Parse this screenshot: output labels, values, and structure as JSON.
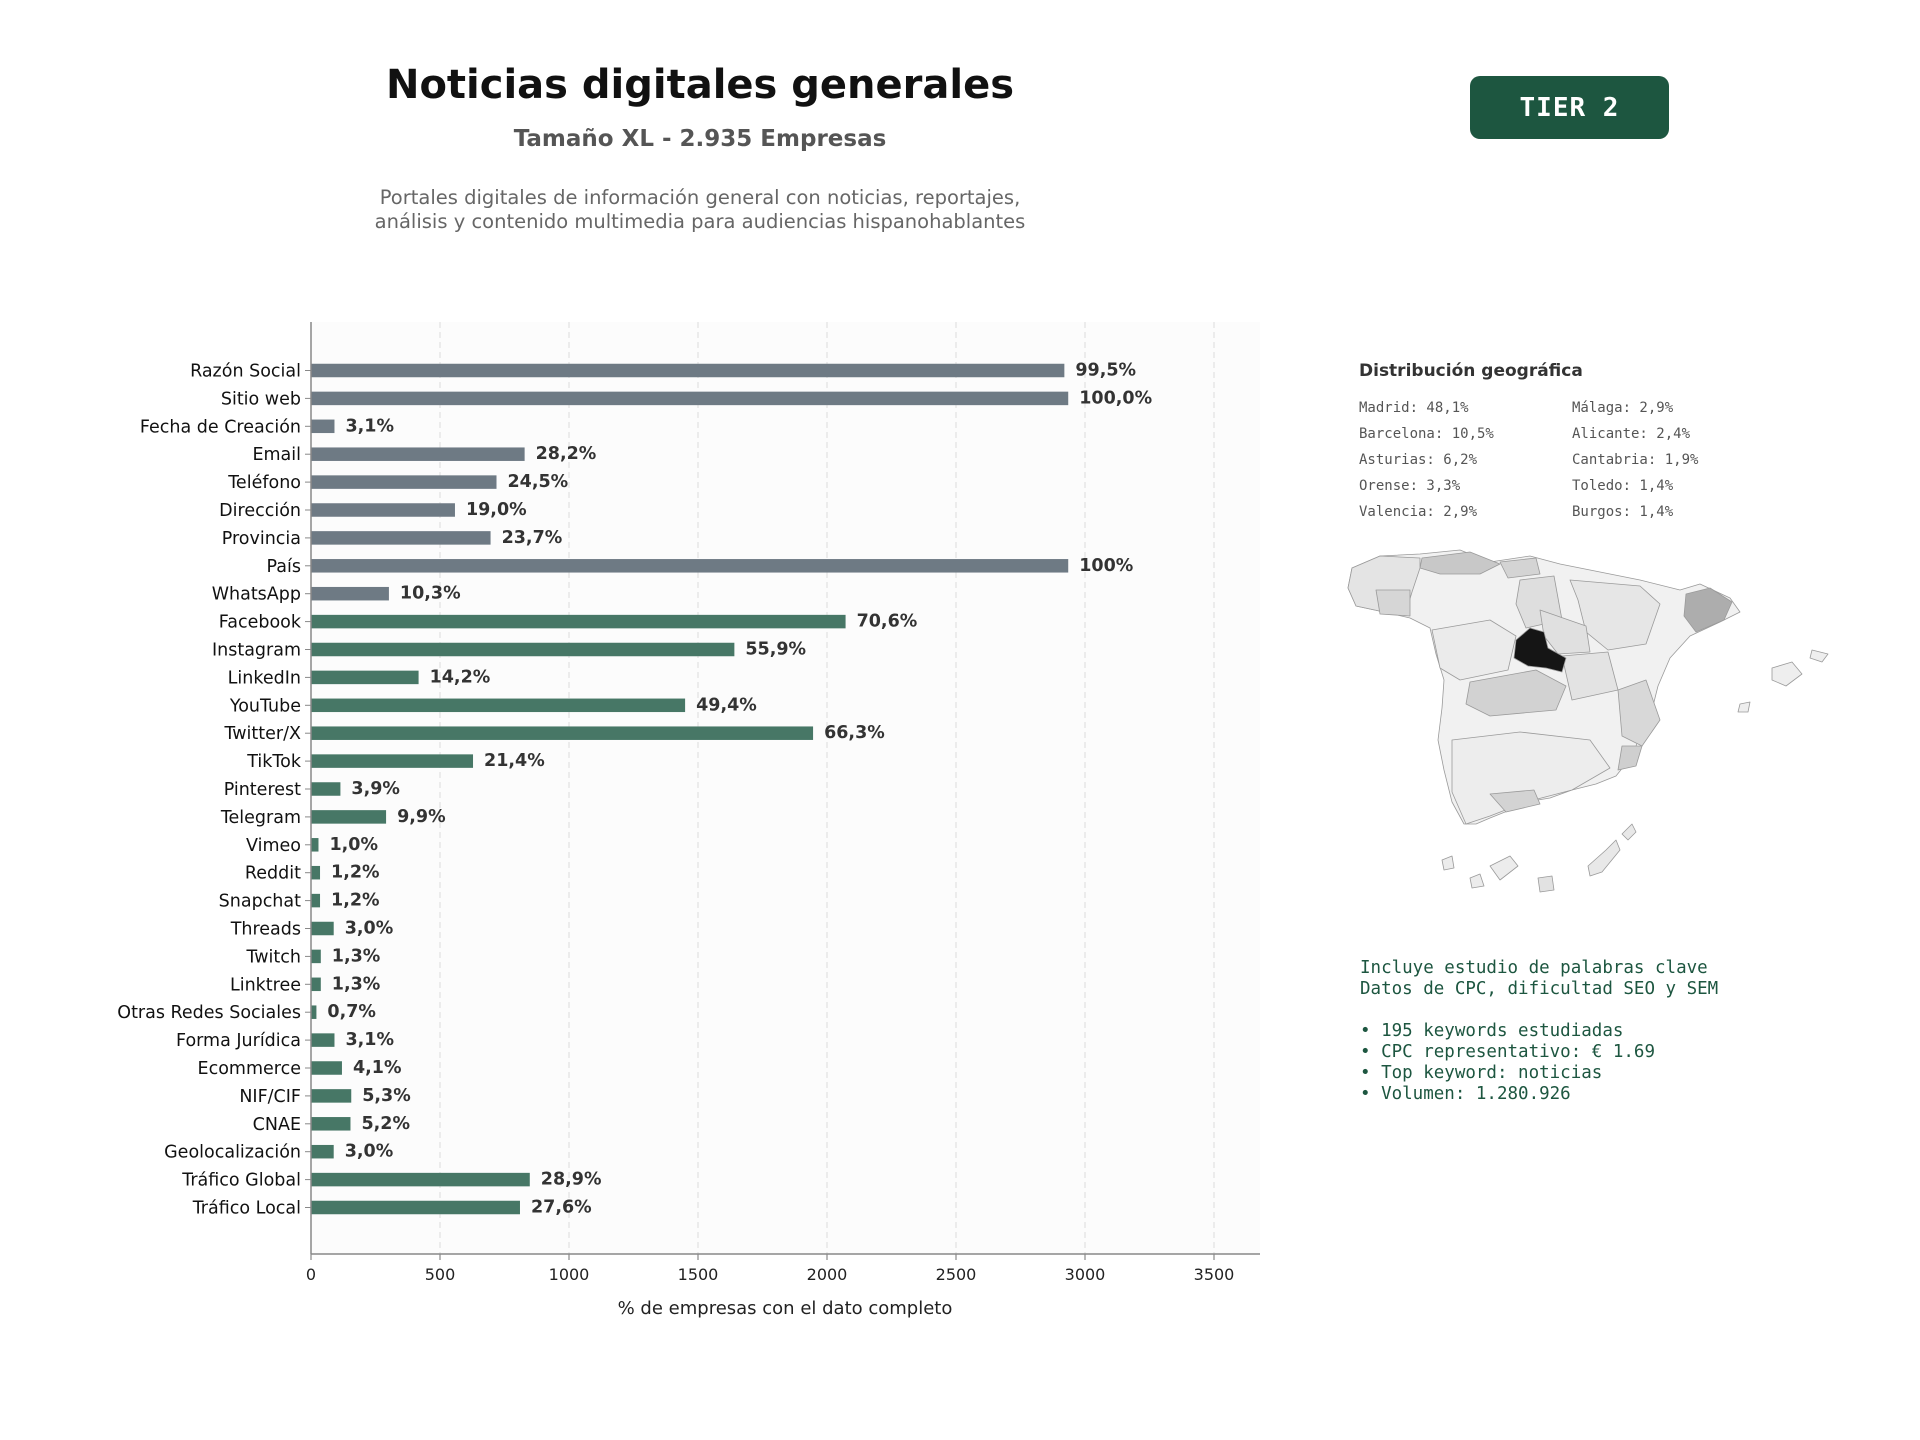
{
  "header": {
    "title": "Noticias digitales generales",
    "subtitle": "Tamaño XL - 2.935 Empresas",
    "description_line1": "Portales digitales de información general con noticias, reportajes,",
    "description_line2": "análisis y contenido multimedia para audiencias hispanohablantes",
    "tier_badge": "TIER 2"
  },
  "colors": {
    "base_bar": "#6e7a84",
    "social_bar": "#477766",
    "accent": "#1d5640"
  },
  "chart_data": {
    "type": "bar",
    "orientation": "horizontal",
    "xlabel": "% de empresas con el dato completo",
    "xlim": [
      0,
      3700
    ],
    "xticks": [
      0,
      500,
      1000,
      1500,
      2000,
      2500,
      3000,
      3500
    ],
    "grid": "vertical dashed",
    "categories": [
      "Razón Social",
      "Sitio web",
      "Fecha de Creación",
      "Email",
      "Teléfono",
      "Dirección",
      "Provincia",
      "País",
      "WhatsApp",
      "Facebook",
      "Instagram",
      "LinkedIn",
      "YouTube",
      "Twitter/X",
      "TikTok",
      "Pinterest",
      "Telegram",
      "Vimeo",
      "Reddit",
      "Snapchat",
      "Threads",
      "Twitch",
      "Linktree",
      "Otras Redes Sociales",
      "Forma Jurídica",
      "Ecommerce",
      "NIF/CIF",
      "CNAE",
      "Geolocalización",
      "Tráfico Global",
      "Tráfico Local"
    ],
    "values": [
      2920,
      2935,
      91,
      828,
      719,
      558,
      696,
      2935,
      302,
      2072,
      1641,
      417,
      1450,
      1946,
      628,
      114,
      291,
      29,
      35,
      35,
      88,
      38,
      38,
      21,
      91,
      120,
      156,
      153,
      88,
      848,
      810
    ],
    "labels": [
      "99,5%",
      "100,0%",
      "3,1%",
      "28,2%",
      "24,5%",
      "19,0%",
      "23,7%",
      "100%",
      "10,3%",
      "70,6%",
      "55,9%",
      "14,2%",
      "49,4%",
      "66,3%",
      "21,4%",
      "3,9%",
      "9,9%",
      "1,0%",
      "1,2%",
      "1,2%",
      "3,0%",
      "1,3%",
      "1,3%",
      "0,7%",
      "3,1%",
      "4,1%",
      "5,3%",
      "5,2%",
      "3,0%",
      "28,9%",
      "27,6%"
    ],
    "groups": [
      "base",
      "base",
      "base",
      "base",
      "base",
      "base",
      "base",
      "base",
      "base",
      "social",
      "social",
      "social",
      "social",
      "social",
      "social",
      "social",
      "social",
      "social",
      "social",
      "social",
      "social",
      "social",
      "social",
      "social",
      "social",
      "social",
      "social",
      "social",
      "social",
      "social",
      "social"
    ]
  },
  "geo": {
    "title": "Distribución geográfica",
    "entries": [
      "Madrid: 48,1%",
      "Málaga: 2,9%",
      "Barcelona: 10,5%",
      "Alicante: 2,4%",
      "Asturias: 6,2%",
      "Cantabria: 1,9%",
      "Orense: 3,3%",
      "Toledo: 1,4%",
      "Valencia: 2,9%",
      "Burgos: 1,4%"
    ]
  },
  "keywords": {
    "line1": "Incluye estudio de palabras clave",
    "line2": "Datos de CPC, dificultad SEO y SEM",
    "bullet1": "• 195 keywords estudiadas",
    "bullet2": "• CPC representativo: € 1.69",
    "bullet3": "• Top keyword: noticias",
    "bullet4": "• Volumen: 1.280.926"
  }
}
